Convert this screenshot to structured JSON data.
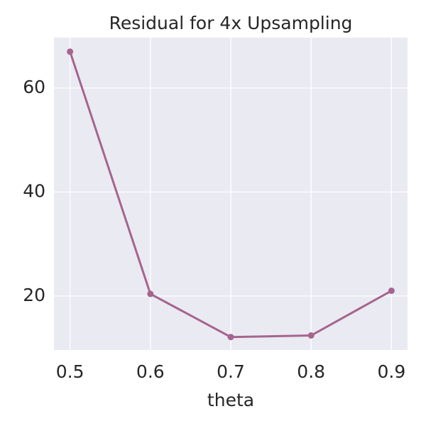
{
  "chart_data": {
    "type": "line",
    "title": "Residual for 4x Upsampling",
    "x_label": "theta",
    "x": [
      0.5,
      0.6,
      0.7,
      0.8,
      0.9
    ],
    "series": [
      {
        "name": "Residual",
        "color": "#a6648e",
        "values": [
          67.0,
          20.4,
          12.1,
          12.4,
          21.0
        ]
      }
    ],
    "xlim": [
      0.48,
      0.92
    ],
    "xticks": [
      0.5,
      0.6,
      0.7,
      0.8,
      0.9
    ],
    "ylim": [
      9.6,
      69.7
    ],
    "yticks": [
      20,
      40,
      60
    ],
    "grid": true
  }
}
